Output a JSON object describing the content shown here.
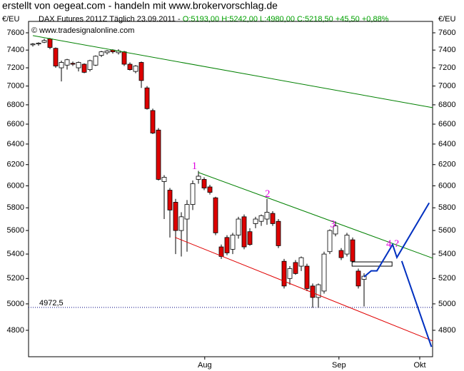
{
  "chart_data": {
    "type": "candlestick",
    "title": "erstellt von oegeat.com - handeln mit www.brokervorschlag.de",
    "subtitle": "DAX Futures 2011Z Täglich  23.09.2011 - ",
    "quote": "O:5193,00 H:5242,00 L:4980,00 C:5218,50 +45,50 +0,88%",
    "quote_color": "#00a000",
    "copyright": "© www.tradesignalonline.com",
    "y_unit": "€/EU",
    "log_y": true,
    "ylim": [
      4608,
      7735
    ],
    "yticks": [
      4800,
      5000,
      5200,
      5400,
      5600,
      5800,
      6000,
      6200,
      6400,
      6600,
      6800,
      7000,
      7200,
      7400,
      7600
    ],
    "xlim": [
      -0.75,
      70
    ],
    "xticks": [
      {
        "value": 30.1,
        "label": "Aug"
      },
      {
        "value": 53.6,
        "label": "Sep"
      },
      {
        "value": 67.75,
        "label": "Okt"
      }
    ],
    "up_color": "#ffffff",
    "down_color": "#dd0000",
    "open": [
      7460,
      7470,
      7490,
      7530,
      7420,
      7200,
      7230,
      7250,
      7200,
      7240,
      7180,
      7230,
      7340,
      7370,
      7400,
      7370,
      7380,
      7240,
      7160,
      7260,
      6980,
      6740,
      6540,
      6040,
      5960,
      5850,
      5600,
      5700,
      5830,
      6060,
      6060,
      5990,
      5890,
      5460,
      5540,
      5440,
      5560,
      5720,
      5590,
      5660,
      5680,
      5700,
      5750,
      5680,
      5340,
      5200,
      5330,
      5300,
      5300,
      5140,
      5050,
      5100,
      5420,
      5570,
      5430,
      5400,
      5520,
      5260,
      5193
    ],
    "high": [
      7480,
      7490,
      7530,
      7540,
      7430,
      7280,
      7300,
      7270,
      7270,
      7250,
      7290,
      7340,
      7390,
      7400,
      7410,
      7410,
      7390,
      7260,
      7230,
      7270,
      7000,
      6760,
      6560,
      6100,
      5980,
      5880,
      5760,
      5870,
      6050,
      6140,
      6080,
      6010,
      5900,
      5480,
      5560,
      5580,
      5720,
      5740,
      5620,
      5720,
      5740,
      5880,
      5770,
      5700,
      5360,
      5300,
      5350,
      5380,
      5320,
      5160,
      5160,
      5420,
      5610,
      5680,
      5450,
      5580,
      5540,
      5280,
      5242
    ],
    "low": [
      7440,
      7450,
      7480,
      7410,
      7200,
      7050,
      7180,
      7220,
      7160,
      7140,
      7160,
      7220,
      7320,
      7350,
      7360,
      7350,
      7220,
      7170,
      7140,
      6980,
      6750,
      6500,
      6050,
      5700,
      5540,
      5400,
      5380,
      5420,
      5780,
      6020,
      5960,
      5920,
      5560,
      5360,
      5390,
      5400,
      5530,
      5440,
      5470,
      5620,
      5640,
      5650,
      5640,
      5450,
      5120,
      5150,
      5230,
      5260,
      5100,
      4970,
      4970,
      5080,
      5400,
      5550,
      5350,
      5380,
      5330,
      5120,
      4980
    ],
    "close": [
      7470,
      7480,
      7510,
      7430,
      7220,
      7260,
      7290,
      7240,
      7260,
      7150,
      7280,
      7330,
      7380,
      7390,
      7380,
      7390,
      7240,
      7180,
      7220,
      7060,
      6760,
      6510,
      6060,
      6080,
      5780,
      5600,
      5720,
      5830,
      6020,
      6090,
      5980,
      5940,
      5580,
      5380,
      5410,
      5560,
      5700,
      5460,
      5480,
      5700,
      5730,
      5760,
      5660,
      5470,
      5140,
      5280,
      5240,
      5370,
      5120,
      5050,
      5150,
      5400,
      5600,
      5640,
      5370,
      5560,
      5340,
      5140,
      5218.5
    ],
    "lines": [
      {
        "color": "#008000",
        "x": [
          0,
          70
        ],
        "y": [
          7567,
          6770
        ]
      },
      {
        "color": "#008000",
        "x": [
          29,
          70
        ],
        "y": [
          6125,
          5366
        ]
      },
      {
        "color": "#e00000",
        "x": [
          24.9,
          70
        ],
        "y": [
          5541,
          4722
        ]
      },
      {
        "color": "#0030c0",
        "x": [
          58,
          59.25,
          60.25,
          63,
          63.75,
          69.4
        ],
        "y": [
          5213,
          5262,
          5262,
          5480,
          5372,
          5844
        ]
      },
      {
        "color": "#0030c0",
        "x": [
          64.6,
          69.8
        ],
        "y": [
          5342,
          4679
        ]
      }
    ],
    "zone": {
      "x": [
        55.9,
        62.9
      ],
      "y": [
        5300,
        5335
      ]
    },
    "level": {
      "value": 4972.5,
      "label": "4972,5",
      "color": "#000080"
    },
    "annotations": [
      {
        "text": "1",
        "x": 28.3,
        "y": 6180
      },
      {
        "text": "2",
        "x": 41.1,
        "y": 5920
      },
      {
        "text": "3",
        "x": 52.5,
        "y": 5650
      },
      {
        "text": "4 ?",
        "x": 63,
        "y": 5480
      }
    ]
  }
}
